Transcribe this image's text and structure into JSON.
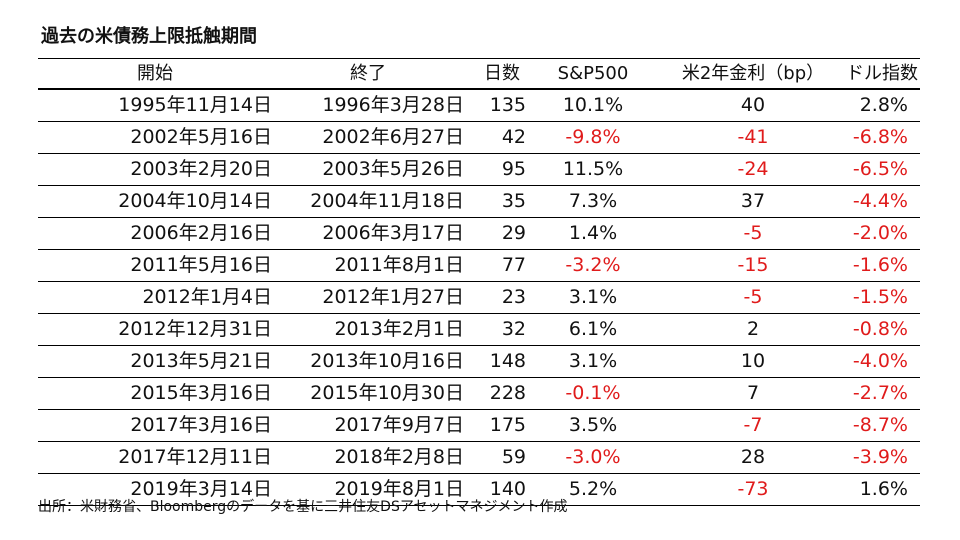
{
  "title": "過去の米債務上限抵触期間",
  "headers": {
    "start": "開始",
    "end": "終了",
    "days": "日数",
    "sp500": "S&P500",
    "rate": "米2年金利（bp）",
    "dollar": "ドル指数"
  },
  "rows": [
    {
      "start": "1995年11月14日",
      "end": "1996年3月28日",
      "days": "135",
      "sp500": "10.1%",
      "rate": "40",
      "dollar": "2.8%",
      "sp500_neg": false,
      "rate_neg": false,
      "dollar_neg": false
    },
    {
      "start": "2002年5月16日",
      "end": "2002年6月27日",
      "days": "42",
      "sp500": "-9.8%",
      "rate": "-41",
      "dollar": "-6.8%",
      "sp500_neg": true,
      "rate_neg": true,
      "dollar_neg": true
    },
    {
      "start": "2003年2月20日",
      "end": "2003年5月26日",
      "days": "95",
      "sp500": "11.5%",
      "rate": "-24",
      "dollar": "-6.5%",
      "sp500_neg": false,
      "rate_neg": true,
      "dollar_neg": true
    },
    {
      "start": "2004年10月14日",
      "end": "2004年11月18日",
      "days": "35",
      "sp500": "7.3%",
      "rate": "37",
      "dollar": "-4.4%",
      "sp500_neg": false,
      "rate_neg": false,
      "dollar_neg": true
    },
    {
      "start": "2006年2月16日",
      "end": "2006年3月17日",
      "days": "29",
      "sp500": "1.4%",
      "rate": "-5",
      "dollar": "-2.0%",
      "sp500_neg": false,
      "rate_neg": true,
      "dollar_neg": true
    },
    {
      "start": "2011年5月16日",
      "end": "2011年8月1日",
      "days": "77",
      "sp500": "-3.2%",
      "rate": "-15",
      "dollar": "-1.6%",
      "sp500_neg": true,
      "rate_neg": true,
      "dollar_neg": true
    },
    {
      "start": "2012年1月4日",
      "end": "2012年1月27日",
      "days": "23",
      "sp500": "3.1%",
      "rate": "-5",
      "dollar": "-1.5%",
      "sp500_neg": false,
      "rate_neg": true,
      "dollar_neg": true
    },
    {
      "start": "2012年12月31日",
      "end": "2013年2月1日",
      "days": "32",
      "sp500": "6.1%",
      "rate": "2",
      "dollar": "-0.8%",
      "sp500_neg": false,
      "rate_neg": false,
      "dollar_neg": true
    },
    {
      "start": "2013年5月21日",
      "end": "2013年10月16日",
      "days": "148",
      "sp500": "3.1%",
      "rate": "10",
      "dollar": "-4.0%",
      "sp500_neg": false,
      "rate_neg": false,
      "dollar_neg": true
    },
    {
      "start": "2015年3月16日",
      "end": "2015年10月30日",
      "days": "228",
      "sp500": "-0.1%",
      "rate": "7",
      "dollar": "-2.7%",
      "sp500_neg": true,
      "rate_neg": false,
      "dollar_neg": true
    },
    {
      "start": "2017年3月16日",
      "end": "2017年9月7日",
      "days": "175",
      "sp500": "3.5%",
      "rate": "-7",
      "dollar": "-8.7%",
      "sp500_neg": false,
      "rate_neg": true,
      "dollar_neg": true
    },
    {
      "start": "2017年12月11日",
      "end": "2018年2月8日",
      "days": "59",
      "sp500": "-3.0%",
      "rate": "28",
      "dollar": "-3.9%",
      "sp500_neg": true,
      "rate_neg": false,
      "dollar_neg": true
    },
    {
      "start": "2019年3月14日",
      "end": "2019年8月1日",
      "days": "140",
      "sp500": "5.2%",
      "rate": "-73",
      "dollar": "1.6%",
      "sp500_neg": false,
      "rate_neg": true,
      "dollar_neg": false
    }
  ],
  "footer": "出所：米財務省、Bloombergのデータを基に三井住友DSアセットマネジメント作成",
  "colors": {
    "negative": "#e01b1b",
    "text": "#111111"
  }
}
